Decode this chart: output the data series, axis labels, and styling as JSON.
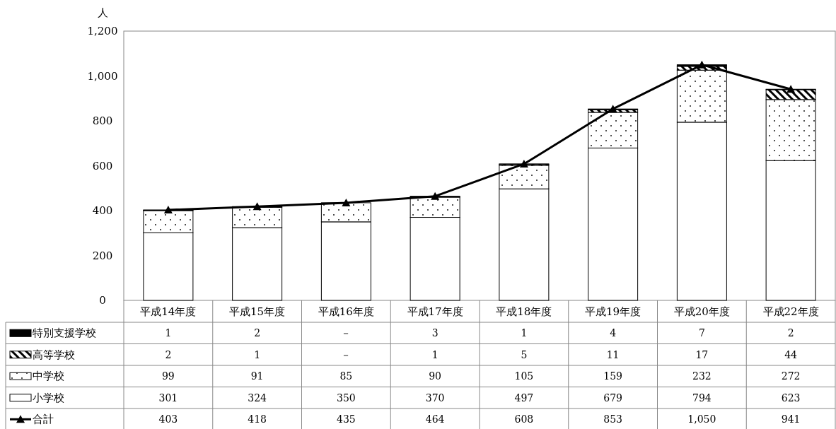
{
  "chart_data": {
    "type": "bar",
    "stacked": true,
    "ylabel": "人",
    "legend": "bottom",
    "marker": "triangle",
    "grid": false,
    "categories": [
      "平成14年度",
      "平成15年度",
      "平成16年度",
      "平成17年度",
      "平成18年度",
      "平成19年度",
      "平成20年度",
      "平成22年度"
    ],
    "ylim": [
      0,
      1200
    ],
    "yticks": [
      0,
      200,
      400,
      600,
      800,
      {
        "value": 1000,
        "label": "1,000"
      },
      {
        "value": 1200,
        "label": "1,200"
      }
    ],
    "series": [
      {
        "name": "小学校",
        "color": "#ffffff",
        "values": [
          301,
          324,
          350,
          370,
          497,
          679,
          794,
          623
        ],
        "value_labels": [
          "301",
          "324",
          "350",
          "370",
          "497",
          "679",
          "794",
          "623"
        ]
      },
      {
        "name": "中学校",
        "color": "#000000",
        "values": [
          99,
          91,
          85,
          90,
          105,
          159,
          232,
          272
        ],
        "value_labels": [
          "99",
          "91",
          "85",
          "90",
          "105",
          "159",
          "232",
          "272"
        ]
      },
      {
        "name": "高等学校",
        "color": "#000000",
        "values": [
          2,
          1,
          null,
          1,
          5,
          11,
          17,
          44
        ],
        "value_labels": [
          "2",
          "1",
          "－",
          "1",
          "5",
          "11",
          "17",
          "44"
        ]
      },
      {
        "name": "特別支援学校",
        "color": "#000000",
        "values": [
          1,
          2,
          null,
          3,
          1,
          4,
          7,
          2
        ],
        "value_labels": [
          "1",
          "2",
          "－",
          "3",
          "1",
          "4",
          "7",
          "2"
        ]
      },
      {
        "name": "合計",
        "type": "line",
        "color": "#000000",
        "values": [
          403,
          418,
          435,
          464,
          608,
          853,
          1050,
          941
        ],
        "value_labels": [
          "403",
          "418",
          "435",
          "464",
          "608",
          "853",
          "1,050",
          "941"
        ]
      }
    ]
  }
}
